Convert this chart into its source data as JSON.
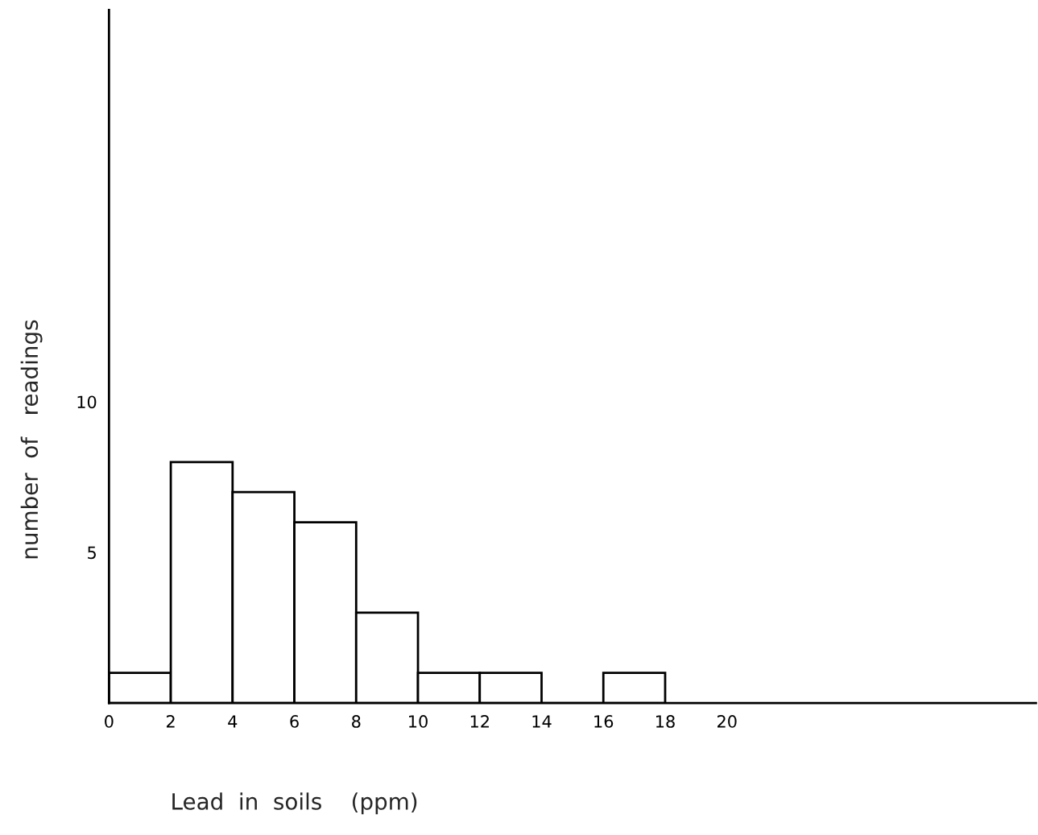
{
  "chart_data": {
    "type": "histogram",
    "xlabel": "Lead  in  soils    (ppm)",
    "ylabel": "number  of   readings",
    "bins": [
      0,
      2,
      4,
      6,
      8,
      10,
      12,
      14,
      16,
      18
    ],
    "values": [
      1,
      8,
      7,
      6,
      3,
      1,
      1,
      0,
      1
    ],
    "color": "#ffffff",
    "xlim": [
      0,
      30
    ],
    "ylim": [
      0,
      23
    ],
    "xticks": [
      0,
      2,
      4,
      6,
      8,
      10,
      12,
      14,
      16,
      18,
      20
    ],
    "yticks": [
      5,
      10
    ]
  }
}
